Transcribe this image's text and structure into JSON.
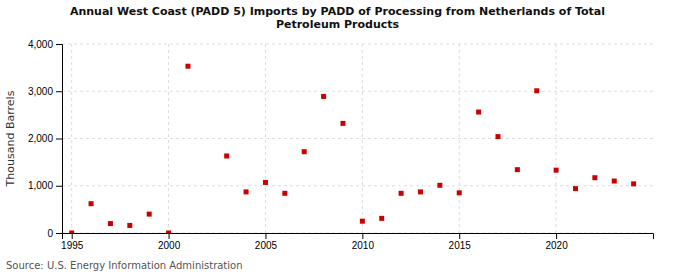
{
  "chart_data": {
    "type": "scatter",
    "title": "Annual West Coast (PADD 5) Imports by PADD of Processing from Netherlands of Total\nPetroleum Products",
    "y_label": "Thousand Barrels",
    "annotations": [
      "Source: U.S. Energy Information Administration"
    ],
    "x": [
      1995,
      1996,
      1997,
      1998,
      1999,
      2000,
      2001,
      2003,
      2004,
      2005,
      2006,
      2007,
      2008,
      2009,
      2010,
      2011,
      2012,
      2013,
      2014,
      2015,
      2016,
      2017,
      2018,
      2019,
      2020,
      2021,
      2022,
      2023,
      2024
    ],
    "values": [
      0,
      620,
      200,
      160,
      400,
      0,
      3530,
      1630,
      870,
      1070,
      840,
      1720,
      2890,
      2320,
      250,
      310,
      840,
      870,
      1010,
      850,
      2560,
      2040,
      1340,
      3010,
      1330,
      940,
      1170,
      1100,
      1040
    ],
    "color": "#cc0000",
    "marker": "square",
    "xlim": [
      1994.5,
      2025
    ],
    "xticks": [
      1995,
      2000,
      2005,
      2010,
      2015,
      2020
    ],
    "ylim": [
      0,
      4000
    ],
    "yticks": [
      0,
      {
        "value": 1000,
        "label": "1,000"
      },
      {
        "value": 2000,
        "label": "2,000"
      },
      {
        "value": 3000,
        "label": "3,000"
      },
      {
        "value": 4000,
        "label": "4,000"
      }
    ],
    "grid": true
  }
}
